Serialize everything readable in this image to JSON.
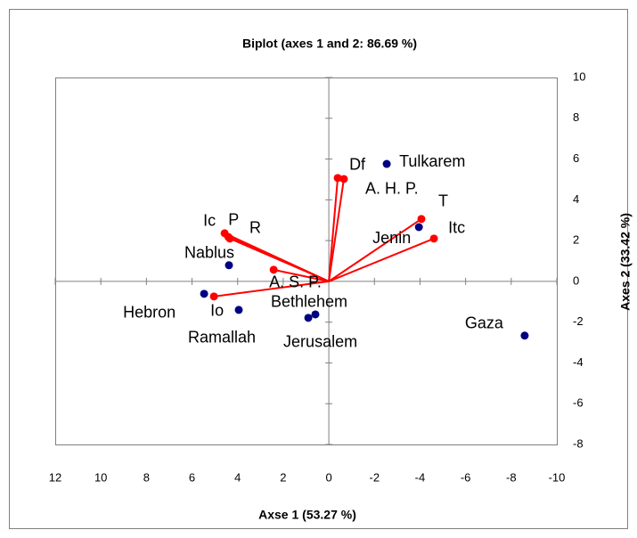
{
  "chart_data": {
    "type": "scatter",
    "title": "Biplot (axes 1 and 2: 86.69 %)",
    "x_label": "Axse 1 (53.27 %)",
    "y_label": "Axes 2 (33.42 %)",
    "xlim": [
      12,
      -10
    ],
    "xticks": [
      12,
      10,
      8,
      6,
      4,
      2,
      0,
      -2,
      -4,
      -6,
      -8,
      -10
    ],
    "ylim": [
      -8,
      10
    ],
    "yticks": [
      -8,
      -6,
      -4,
      -2,
      0,
      2,
      4,
      6,
      8,
      10
    ],
    "series": [
      {
        "color": "#000080",
        "labels": [
          "Tulkarem",
          "Jenin",
          "Nablus",
          "Hebron",
          "Ramallah",
          "Bethlehem",
          "Jerusalem",
          "Gaza"
        ],
        "x": [
          -2.54,
          -3.95,
          4.38,
          5.47,
          3.95,
          0.59,
          0.9,
          -8.59
        ],
        "values": [
          5.76,
          2.66,
          0.79,
          -0.61,
          -1.4,
          -1.62,
          -1.79,
          -2.66
        ]
      },
      {
        "color": "#ff0000",
        "vectors": true,
        "labels": [
          "Df",
          "A. H. P.",
          "T",
          "Itc",
          "Ic",
          "P",
          "R",
          "A. S. P.",
          "Io"
        ],
        "x": [
          -0.39,
          -0.66,
          -4.06,
          -4.61,
          4.57,
          4.41,
          4.34,
          2.42,
          5.04
        ],
        "values": [
          5.07,
          5.02,
          3.06,
          2.1,
          2.36,
          2.18,
          2.1,
          0.57,
          -0.74
        ]
      }
    ]
  }
}
